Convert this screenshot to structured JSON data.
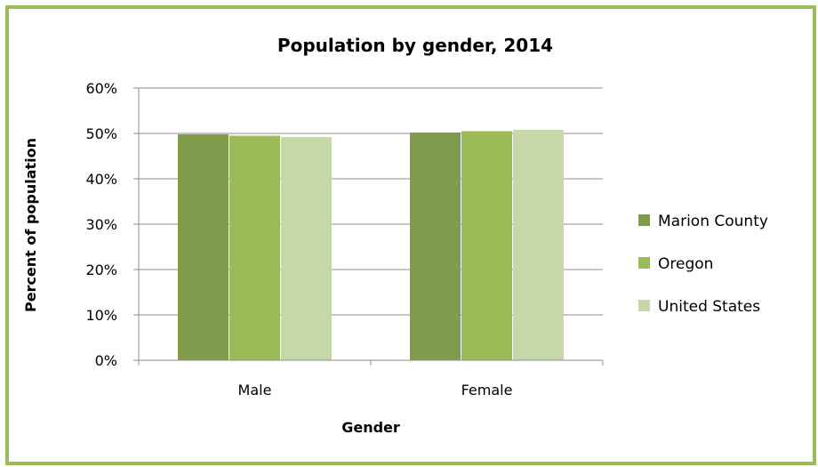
{
  "chart_data": {
    "type": "bar",
    "title": "Population by gender, 2014",
    "xlabel": "Gender",
    "ylabel": "Percent of population",
    "categories": [
      "Male",
      "Female"
    ],
    "series": [
      {
        "name": "Marion County",
        "values": [
          49.8,
          50.2
        ],
        "color": "#7f9b4b"
      },
      {
        "name": "Oregon",
        "values": [
          49.5,
          50.5
        ],
        "color": "#9bbb59"
      },
      {
        "name": "United States",
        "values": [
          49.2,
          50.8
        ],
        "color": "#c6d7aa"
      }
    ],
    "ylim": [
      0,
      60
    ],
    "yticks": [
      0,
      10,
      20,
      30,
      40,
      50,
      60
    ],
    "ytick_labels": [
      "0%",
      "10%",
      "20%",
      "30%",
      "40%",
      "50%",
      "60%"
    ],
    "grid": true,
    "legend_position": "right",
    "frame_color": "#9bbb59"
  }
}
